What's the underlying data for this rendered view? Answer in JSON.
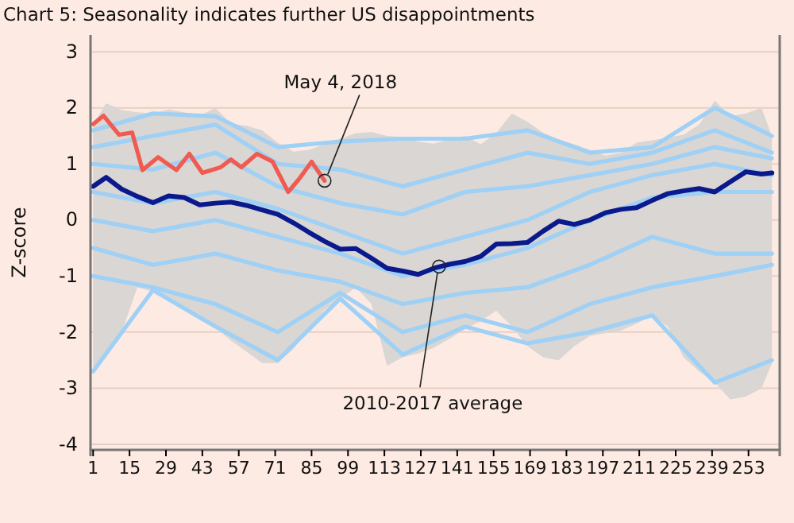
{
  "chart_data": {
    "type": "line",
    "title": "Chart 5: Seasonality indicates further US disappointments",
    "ylabel": "Z-score",
    "xlim": [
      0,
      265
    ],
    "xticks": [
      1,
      15,
      29,
      43,
      57,
      71,
      85,
      99,
      113,
      127,
      141,
      155,
      169,
      183,
      197,
      211,
      225,
      239,
      253
    ],
    "ylim": [
      -4.1,
      3.3
    ],
    "yticks": [
      -4,
      -3,
      -2,
      -1,
      0,
      1,
      2,
      3
    ],
    "grid": "y",
    "marker": "none",
    "line_style": "solid",
    "annotations": [
      {
        "text": "May 4, 2018",
        "x": 90,
        "y": 0.7
      },
      {
        "text": "2010-2017 average",
        "x": 134,
        "y": -0.83
      }
    ],
    "series": [
      {
        "color": "#9fd0f5",
        "x": [
          1,
          24,
          48,
          72,
          96,
          120,
          144,
          168,
          192,
          216,
          240,
          262
        ],
        "values": [
          1.6,
          1.9,
          1.85,
          1.3,
          1.4,
          1.45,
          1.45,
          1.6,
          1.2,
          1.3,
          2.0,
          1.5
        ]
      },
      {
        "color": "#9fd0f5",
        "x": [
          1,
          24,
          48,
          72,
          96,
          120,
          144,
          168,
          192,
          216,
          240,
          262
        ],
        "values": [
          1.3,
          1.5,
          1.7,
          1.0,
          0.9,
          0.6,
          0.9,
          1.2,
          1.0,
          1.2,
          1.6,
          1.2
        ]
      },
      {
        "color": "#9fd0f5",
        "x": [
          1,
          24,
          48,
          72,
          96,
          120,
          144,
          168,
          192,
          216,
          240,
          262
        ],
        "values": [
          1.0,
          0.9,
          1.2,
          0.6,
          0.3,
          0.1,
          0.5,
          0.6,
          0.8,
          1.0,
          1.3,
          1.1
        ]
      },
      {
        "color": "#9fd0f5",
        "x": [
          1,
          24,
          48,
          72,
          96,
          120,
          144,
          168,
          192,
          216,
          240,
          262
        ],
        "values": [
          0.5,
          0.3,
          0.5,
          0.2,
          -0.2,
          -0.6,
          -0.3,
          0.0,
          0.5,
          0.8,
          1.0,
          0.8
        ]
      },
      {
        "color": "#9fd0f5",
        "x": [
          1,
          24,
          48,
          72,
          96,
          120,
          144,
          168,
          192,
          216,
          240,
          262
        ],
        "values": [
          0.0,
          -0.2,
          0.0,
          -0.3,
          -0.6,
          -1.0,
          -0.8,
          -0.5,
          0.0,
          0.4,
          0.5,
          0.5
        ]
      },
      {
        "color": "#9fd0f5",
        "x": [
          1,
          24,
          48,
          72,
          96,
          120,
          144,
          168,
          192,
          216,
          240,
          262
        ],
        "values": [
          -0.5,
          -0.8,
          -0.6,
          -0.9,
          -1.1,
          -1.5,
          -1.3,
          -1.2,
          -0.8,
          -0.3,
          -0.6,
          -0.6
        ]
      },
      {
        "color": "#9fd0f5",
        "x": [
          1,
          24,
          48,
          72,
          96,
          120,
          144,
          168,
          192,
          216,
          240,
          262
        ],
        "values": [
          -1.0,
          -1.2,
          -1.5,
          -2.0,
          -1.3,
          -2.0,
          -1.7,
          -2.0,
          -1.5,
          -1.2,
          -1.0,
          -0.8
        ]
      },
      {
        "color": "#9fd0f5",
        "x": [
          1,
          24,
          48,
          72,
          96,
          120,
          144,
          168,
          192,
          216,
          240,
          262
        ],
        "values": [
          -2.7,
          -1.25,
          -1.9,
          -2.5,
          -1.4,
          -2.4,
          -1.9,
          -2.2,
          -2.0,
          -1.7,
          -2.9,
          -2.5
        ]
      },
      {
        "color": "#f05a50",
        "x": [
          1,
          5,
          11,
          16,
          20,
          26,
          33,
          38,
          43,
          50,
          54,
          58,
          64,
          70,
          76,
          80,
          85,
          90
        ],
        "values": [
          1.71,
          1.86,
          1.52,
          1.56,
          0.89,
          1.12,
          0.89,
          1.18,
          0.84,
          0.94,
          1.08,
          0.94,
          1.18,
          1.04,
          0.5,
          0.72,
          1.04,
          0.7
        ]
      },
      {
        "color": "#0a1a8c",
        "x": [
          1,
          6,
          12,
          18,
          24,
          30,
          36,
          42,
          48,
          54,
          60,
          66,
          72,
          78,
          84,
          90,
          96,
          102,
          108,
          114,
          120,
          126,
          132,
          138,
          144,
          150,
          156,
          162,
          168,
          174,
          180,
          186,
          192,
          198,
          204,
          210,
          216,
          222,
          228,
          234,
          240,
          246,
          252,
          258,
          262
        ],
        "values": [
          0.6,
          0.76,
          0.55,
          0.42,
          0.31,
          0.43,
          0.4,
          0.27,
          0.3,
          0.32,
          0.26,
          0.18,
          0.1,
          -0.05,
          -0.22,
          -0.38,
          -0.52,
          -0.51,
          -0.68,
          -0.86,
          -0.91,
          -0.97,
          -0.86,
          -0.79,
          -0.74,
          -0.65,
          -0.43,
          -0.42,
          -0.4,
          -0.2,
          -0.02,
          -0.08,
          0.0,
          0.13,
          0.19,
          0.22,
          0.35,
          0.47,
          0.52,
          0.56,
          0.5,
          0.68,
          0.86,
          0.82,
          0.84
        ],
        "upper": [
          1.7,
          2.08,
          1.96,
          1.92,
          1.9,
          1.97,
          1.92,
          1.86,
          2.0,
          1.72,
          1.68,
          1.6,
          1.38,
          1.22,
          1.25,
          1.35,
          1.45,
          1.55,
          1.57,
          1.5,
          1.48,
          1.4,
          1.36,
          1.44,
          1.5,
          1.35,
          1.55,
          1.9,
          1.75,
          1.56,
          1.44,
          1.35,
          1.25,
          1.15,
          1.2,
          1.38,
          1.42,
          1.47,
          1.52,
          1.7,
          2.13,
          1.85,
          1.9,
          2.0,
          1.5
        ],
        "lower": [
          -2.74,
          -2.4,
          -2.0,
          -1.2,
          -1.28,
          -1.4,
          -1.55,
          -1.7,
          -1.92,
          -2.15,
          -2.35,
          -2.55,
          -2.55,
          -2.3,
          -1.95,
          -1.6,
          -1.4,
          -1.2,
          -1.5,
          -2.6,
          -2.45,
          -2.38,
          -2.28,
          -2.12,
          -1.95,
          -1.8,
          -1.62,
          -1.9,
          -2.25,
          -2.45,
          -2.5,
          -2.25,
          -2.07,
          -2.02,
          -1.97,
          -1.85,
          -1.7,
          -1.9,
          -2.45,
          -2.7,
          -2.9,
          -3.2,
          -3.15,
          -3.0,
          -2.56
        ]
      }
    ]
  }
}
